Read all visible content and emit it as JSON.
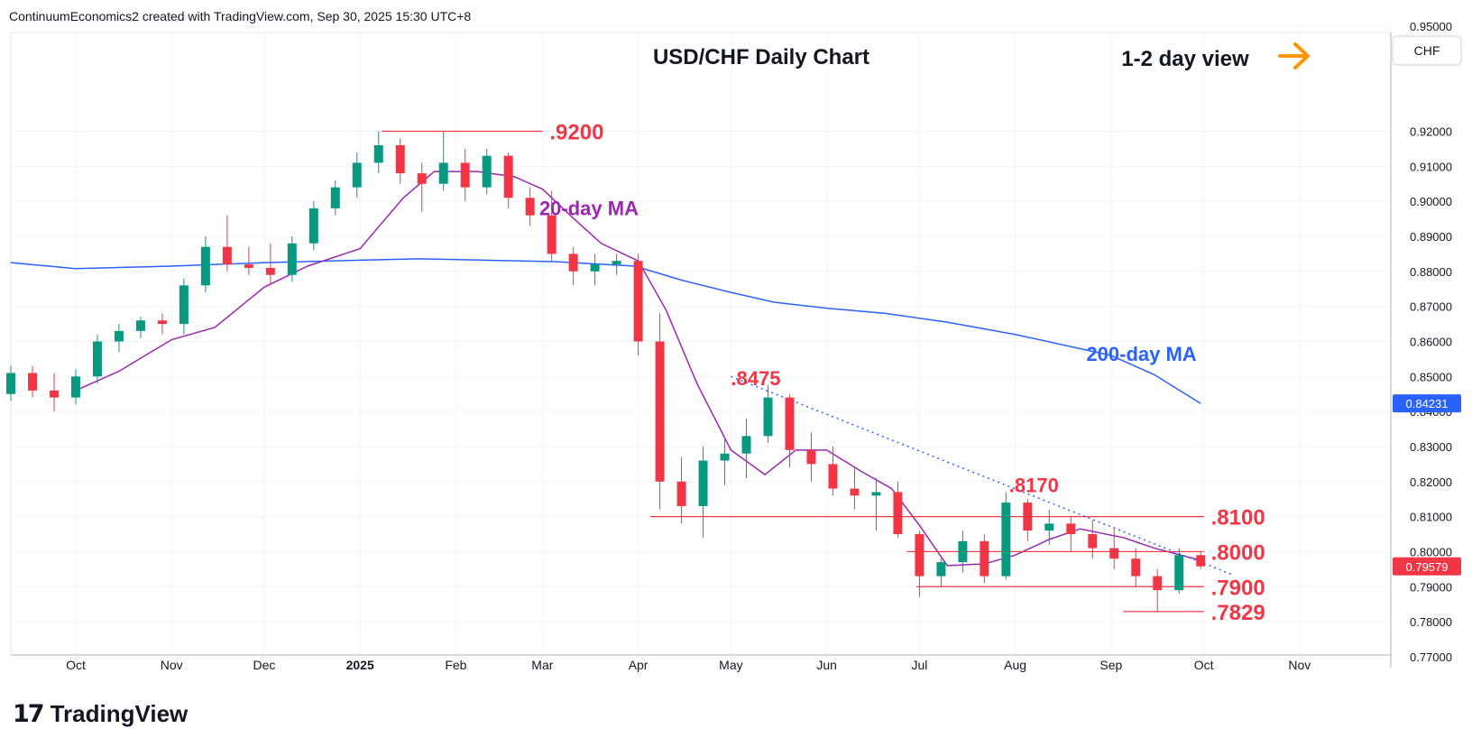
{
  "header": {
    "credit": "ContinuumEconomics2 created with TradingView.com, Sep 30, 2025 15:30 UTC+8"
  },
  "footer": {
    "brand": "TradingView"
  },
  "colors": {
    "up": "#089981",
    "down": "#f23645",
    "ma20": "#9c27b0",
    "ma200": "#2962ff",
    "level": "#f23645",
    "arrow": "#ff9800",
    "trend": "#2962ff"
  },
  "chart_data": {
    "type": "candlestick",
    "title": "USD/CHF Daily Chart",
    "subtitle": "1-2 day view",
    "currency": "CHF",
    "ylim": [
      0.7705,
      0.9482
    ],
    "y_ticks": [
      "0.95000",
      "0.92000",
      "0.91000",
      "0.90000",
      "0.89000",
      "0.88000",
      "0.87000",
      "0.86000",
      "0.85000",
      "0.84000",
      "0.83000",
      "0.82000",
      "0.81000",
      "0.80000",
      "0.79000",
      "0.78000",
      "0.77000"
    ],
    "x_ticks": [
      "Oct",
      "Nov",
      "Dec",
      "2025",
      "Feb",
      "Mar",
      "Apr",
      "May",
      "Jun",
      "Jul",
      "Aug",
      "Sep",
      "Oct",
      "Nov"
    ],
    "price_tags": [
      {
        "value": 0.84231,
        "label": "0.84231",
        "color": "#2962ff"
      },
      {
        "value": 0.79579,
        "label": "0.79579",
        "color": "#f23645"
      }
    ],
    "levels": [
      {
        "label": ".9200",
        "value": 0.92
      },
      {
        "label": ".8100",
        "value": 0.81
      },
      {
        "label": ".8000",
        "value": 0.8
      },
      {
        "label": ".7900",
        "value": 0.79
      },
      {
        "label": ".7829",
        "value": 0.7829
      }
    ],
    "annotations": [
      {
        "text": ".8475",
        "date": "2025-05-01",
        "value": 0.8475
      },
      {
        "text": ".8170",
        "date": "2025-07-30",
        "value": 0.817
      },
      {
        "text": "20-day MA",
        "date": "2025-02-28",
        "value": 0.896
      },
      {
        "text": "200-day MA",
        "date": "2025-08-24",
        "value": 0.8545
      }
    ],
    "trendline": {
      "from": {
        "date": "2025-05-01",
        "value": 0.85
      },
      "to": {
        "date": "2025-10-10",
        "value": 0.7935
      }
    },
    "ma200": [
      [
        "2024-09-10",
        0.8825
      ],
      [
        "2024-10-01",
        0.8808
      ],
      [
        "2024-11-01",
        0.8815
      ],
      [
        "2024-12-01",
        0.8825
      ],
      [
        "2025-01-01",
        0.8832
      ],
      [
        "2025-01-20",
        0.8836
      ],
      [
        "2025-02-10",
        0.8832
      ],
      [
        "2025-03-05",
        0.8828
      ],
      [
        "2025-03-31",
        0.8815
      ],
      [
        "2025-04-15",
        0.8775
      ],
      [
        "2025-05-01",
        0.874
      ],
      [
        "2025-05-15",
        0.8712
      ],
      [
        "2025-06-01",
        0.8695
      ],
      [
        "2025-06-20",
        0.868
      ],
      [
        "2025-07-10",
        0.8655
      ],
      [
        "2025-08-01",
        0.862
      ],
      [
        "2025-09-01",
        0.856
      ],
      [
        "2025-09-15",
        0.8505
      ],
      [
        "2025-09-30",
        0.8423
      ]
    ],
    "ma20": [
      [
        "2024-10-01",
        0.846
      ],
      [
        "2024-10-15",
        0.8515
      ],
      [
        "2024-11-01",
        0.8605
      ],
      [
        "2024-11-15",
        0.864
      ],
      [
        "2024-12-01",
        0.8755
      ],
      [
        "2024-12-15",
        0.8815
      ],
      [
        "2025-01-01",
        0.8865
      ],
      [
        "2025-01-15",
        0.901
      ],
      [
        "2025-01-25",
        0.9085
      ],
      [
        "2025-02-08",
        0.9085
      ],
      [
        "2025-02-20",
        0.907
      ],
      [
        "2025-03-01",
        0.9035
      ],
      [
        "2025-03-10",
        0.896
      ],
      [
        "2025-03-20",
        0.888
      ],
      [
        "2025-04-01",
        0.883
      ],
      [
        "2025-04-10",
        0.869
      ],
      [
        "2025-04-20",
        0.848
      ],
      [
        "2025-05-01",
        0.829
      ],
      [
        "2025-05-12",
        0.822
      ],
      [
        "2025-05-22",
        0.829
      ],
      [
        "2025-06-01",
        0.829
      ],
      [
        "2025-06-12",
        0.823
      ],
      [
        "2025-06-22",
        0.818
      ],
      [
        "2025-07-01",
        0.8075
      ],
      [
        "2025-07-10",
        0.796
      ],
      [
        "2025-07-22",
        0.7965
      ],
      [
        "2025-08-01",
        0.799
      ],
      [
        "2025-08-12",
        0.8035
      ],
      [
        "2025-08-22",
        0.8065
      ],
      [
        "2025-09-05",
        0.804
      ],
      [
        "2025-09-15",
        0.801
      ],
      [
        "2025-09-30",
        0.7975
      ]
    ],
    "candles": [
      [
        "2024-09-10",
        0.845,
        0.853,
        0.843,
        0.851
      ],
      [
        "2024-09-17",
        0.851,
        0.853,
        0.844,
        0.846
      ],
      [
        "2024-09-24",
        0.846,
        0.851,
        0.84,
        0.844
      ],
      [
        "2024-10-01",
        0.844,
        0.852,
        0.842,
        0.85
      ],
      [
        "2024-10-08",
        0.85,
        0.862,
        0.848,
        0.86
      ],
      [
        "2024-10-15",
        0.86,
        0.865,
        0.857,
        0.863
      ],
      [
        "2024-10-22",
        0.863,
        0.867,
        0.861,
        0.866
      ],
      [
        "2024-10-29",
        0.866,
        0.868,
        0.862,
        0.865
      ],
      [
        "2024-11-05",
        0.865,
        0.878,
        0.862,
        0.876
      ],
      [
        "2024-11-12",
        0.876,
        0.89,
        0.874,
        0.887
      ],
      [
        "2024-11-19",
        0.887,
        0.896,
        0.88,
        0.882
      ],
      [
        "2024-11-26",
        0.882,
        0.887,
        0.879,
        0.881
      ],
      [
        "2024-12-03",
        0.881,
        0.888,
        0.876,
        0.879
      ],
      [
        "2024-12-10",
        0.879,
        0.89,
        0.877,
        0.888
      ],
      [
        "2024-12-17",
        0.888,
        0.9,
        0.886,
        0.898
      ],
      [
        "2024-12-24",
        0.898,
        0.906,
        0.896,
        0.904
      ],
      [
        "2024-12-31",
        0.904,
        0.914,
        0.901,
        0.911
      ],
      [
        "2025-01-07",
        0.911,
        0.92,
        0.908,
        0.916
      ],
      [
        "2025-01-14",
        0.916,
        0.918,
        0.905,
        0.908
      ],
      [
        "2025-01-21",
        0.908,
        0.911,
        0.897,
        0.905
      ],
      [
        "2025-01-28",
        0.905,
        0.92,
        0.903,
        0.911
      ],
      [
        "2025-02-04",
        0.911,
        0.915,
        0.9,
        0.904
      ],
      [
        "2025-02-11",
        0.904,
        0.915,
        0.902,
        0.913
      ],
      [
        "2025-02-18",
        0.913,
        0.914,
        0.898,
        0.901
      ],
      [
        "2025-02-25",
        0.901,
        0.904,
        0.893,
        0.896
      ],
      [
        "2025-03-04",
        0.896,
        0.903,
        0.883,
        0.885
      ],
      [
        "2025-03-11",
        0.885,
        0.887,
        0.876,
        0.88
      ],
      [
        "2025-03-18",
        0.88,
        0.885,
        0.876,
        0.882
      ],
      [
        "2025-03-25",
        0.882,
        0.885,
        0.879,
        0.883
      ],
      [
        "2025-04-01",
        0.883,
        0.885,
        0.856,
        0.86
      ],
      [
        "2025-04-08",
        0.86,
        0.868,
        0.812,
        0.82
      ],
      [
        "2025-04-15",
        0.82,
        0.827,
        0.808,
        0.813
      ],
      [
        "2025-04-22",
        0.813,
        0.83,
        0.804,
        0.826
      ],
      [
        "2025-04-29",
        0.826,
        0.832,
        0.819,
        0.828
      ],
      [
        "2025-05-06",
        0.828,
        0.838,
        0.821,
        0.833
      ],
      [
        "2025-05-13",
        0.833,
        0.8475,
        0.831,
        0.844
      ],
      [
        "2025-05-20",
        0.844,
        0.845,
        0.824,
        0.829
      ],
      [
        "2025-05-27",
        0.829,
        0.834,
        0.82,
        0.825
      ],
      [
        "2025-06-03",
        0.825,
        0.83,
        0.816,
        0.818
      ],
      [
        "2025-06-10",
        0.818,
        0.824,
        0.812,
        0.816
      ],
      [
        "2025-06-17",
        0.816,
        0.821,
        0.806,
        0.817
      ],
      [
        "2025-06-24",
        0.817,
        0.82,
        0.804,
        0.805
      ],
      [
        "2025-07-01",
        0.805,
        0.806,
        0.787,
        0.793
      ],
      [
        "2025-07-08",
        0.793,
        0.798,
        0.79,
        0.797
      ],
      [
        "2025-07-15",
        0.797,
        0.806,
        0.794,
        0.803
      ],
      [
        "2025-07-22",
        0.803,
        0.805,
        0.791,
        0.793
      ],
      [
        "2025-07-29",
        0.793,
        0.817,
        0.792,
        0.814
      ],
      [
        "2025-08-05",
        0.814,
        0.815,
        0.803,
        0.806
      ],
      [
        "2025-08-12",
        0.806,
        0.812,
        0.802,
        0.808
      ],
      [
        "2025-08-19",
        0.808,
        0.81,
        0.8,
        0.805
      ],
      [
        "2025-08-26",
        0.805,
        0.809,
        0.798,
        0.801
      ],
      [
        "2025-09-02",
        0.801,
        0.807,
        0.795,
        0.798
      ],
      [
        "2025-09-09",
        0.798,
        0.801,
        0.79,
        0.793
      ],
      [
        "2025-09-16",
        0.793,
        0.795,
        0.7829,
        0.789
      ],
      [
        "2025-09-23",
        0.789,
        0.801,
        0.788,
        0.799
      ],
      [
        "2025-09-30",
        0.799,
        0.8,
        0.795,
        0.7958
      ]
    ]
  }
}
